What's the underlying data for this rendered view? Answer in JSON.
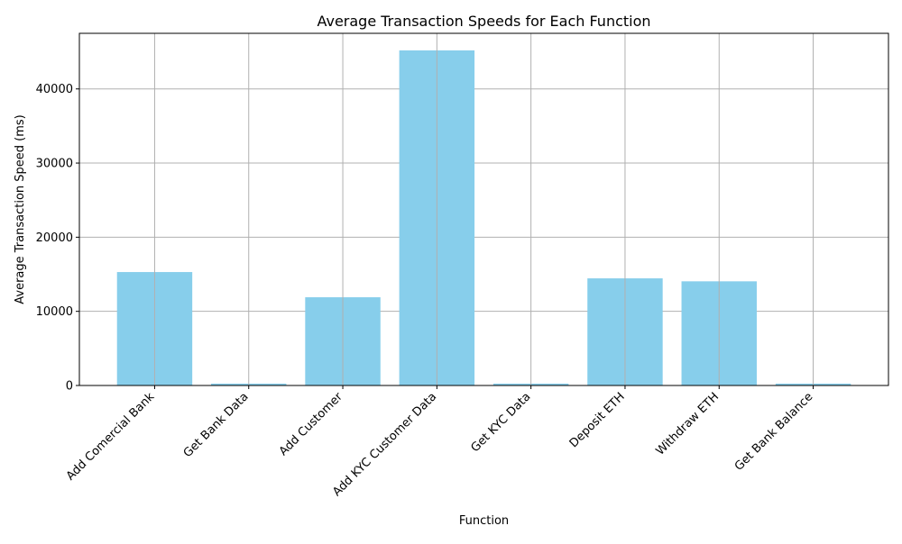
{
  "chart_data": {
    "type": "bar",
    "title": "Average Transaction Speeds for Each Function",
    "xlabel": "Function",
    "ylabel": "Average Transaction Speed (ms)",
    "categories": [
      "Add Comercial Bank",
      "Get Bank Data",
      "Add Customer",
      "Add KYC Customer Data",
      "Get KYC Data",
      "Deposit ETH",
      "Withdraw ETH",
      "Get Bank Balance"
    ],
    "values": [
      15300,
      250,
      11900,
      45200,
      250,
      14450,
      14050,
      250
    ],
    "ylim": [
      0,
      47500
    ],
    "yticks": [
      0,
      10000,
      20000,
      30000,
      40000
    ],
    "ytick_labels": [
      "0",
      "10000",
      "20000",
      "30000",
      "40000"
    ],
    "grid": true,
    "bar_color": "#87CEEB",
    "grid_color": "#b0b0b0",
    "axis_color": "#000000"
  }
}
